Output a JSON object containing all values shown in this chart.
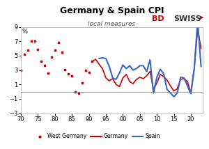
{
  "title": "Germany & Spain CPI",
  "subtitle": "local measures",
  "ylabel": "%",
  "xlim": [
    1970,
    2023.5
  ],
  "ylim": [
    -3,
    9
  ],
  "yticks": [
    -3,
    -1,
    1,
    3,
    5,
    7,
    9
  ],
  "xtick_labels": [
    "70",
    "75",
    "80",
    "85",
    "90",
    "95",
    "00",
    "05",
    "10",
    "15",
    "20"
  ],
  "xtick_positions": [
    1970,
    1975,
    1980,
    1985,
    1990,
    1995,
    2000,
    2005,
    2010,
    2015,
    2020
  ],
  "hline_y": 0,
  "west_germany_color": "#cc0000",
  "germany_color": "#cc0000",
  "spain_color": "#3366cc",
  "west_germany_years": [
    1970,
    1971,
    1972,
    1973,
    1974,
    1975,
    1976,
    1977,
    1978,
    1979,
    1980,
    1981,
    1982,
    1983,
    1984,
    1985,
    1986,
    1987,
    1988,
    1989,
    1990,
    1991
  ],
  "west_germany_values": [
    3.0,
    5.2,
    5.8,
    7.0,
    7.0,
    5.9,
    4.2,
    3.6,
    2.6,
    4.8,
    5.8,
    6.8,
    5.5,
    3.1,
    2.5,
    2.2,
    0.0,
    -0.2,
    1.2,
    3.0,
    2.7,
    4.2
  ],
  "germany_years": [
    1991,
    1992,
    1993,
    1994,
    1995,
    1996,
    1997,
    1998,
    1999,
    2000,
    2001,
    2002,
    2003,
    2004,
    2005,
    2006,
    2007,
    2008,
    2009,
    2010,
    2011,
    2012,
    2013,
    2014,
    2015,
    2016,
    2017,
    2018,
    2019,
    2020,
    2021,
    2022,
    2023
  ],
  "germany_values": [
    4.2,
    4.5,
    3.8,
    3.2,
    1.9,
    1.5,
    1.8,
    1.0,
    0.7,
    1.9,
    2.4,
    1.4,
    1.1,
    1.7,
    2.0,
    1.8,
    2.2,
    2.8,
    0.3,
    1.2,
    2.4,
    2.1,
    1.6,
    0.8,
    0.1,
    0.4,
    1.7,
    1.8,
    1.4,
    -0.2,
    3.2,
    8.7,
    6.0
  ],
  "spain_years": [
    1993,
    1994,
    1995,
    1996,
    1997,
    1998,
    1999,
    2000,
    2001,
    2002,
    2003,
    2004,
    2005,
    2006,
    2007,
    2008,
    2009,
    2010,
    2011,
    2012,
    2013,
    2014,
    2015,
    2016,
    2017,
    2018,
    2019,
    2020,
    2021,
    2022,
    2023
  ],
  "spain_values": [
    4.6,
    4.7,
    4.6,
    3.5,
    1.9,
    1.7,
    2.6,
    3.7,
    3.2,
    3.6,
    3.0,
    3.2,
    3.6,
    3.6,
    2.8,
    4.4,
    -0.2,
    2.0,
    3.1,
    2.5,
    0.3,
    -0.2,
    -0.7,
    -0.2,
    2.0,
    1.9,
    0.8,
    -0.3,
    3.2,
    9.8,
    3.5
  ]
}
